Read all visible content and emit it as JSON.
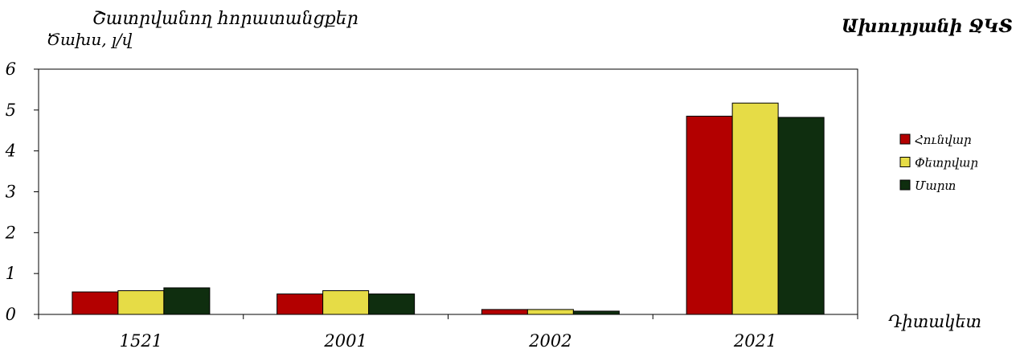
{
  "chart_data": {
    "type": "bar",
    "title": "Շատրվանող հորատանցքեր",
    "right_title": "Ախուրյանի ՋԿՏ",
    "ylabel": "Ծախս, լ/վ",
    "xlabel": "Դիտակետ",
    "categories": [
      "1521",
      "2001",
      "2002",
      "2021"
    ],
    "ylim": [
      0,
      6
    ],
    "yticks": [
      "0",
      "1",
      "2",
      "3",
      "4",
      "5",
      "6"
    ],
    "grid": false,
    "legend_position": "right",
    "series": [
      {
        "name": "Հունվար",
        "color": "#b30000",
        "values": [
          0.55,
          0.5,
          0.12,
          4.85
        ]
      },
      {
        "name": "Փետրվար",
        "color": "#e6dc46",
        "values": [
          0.58,
          0.58,
          0.12,
          5.17
        ]
      },
      {
        "name": "Մարտ",
        "color": "#0f2e0f",
        "values": [
          0.65,
          0.5,
          0.08,
          4.82
        ]
      }
    ]
  }
}
